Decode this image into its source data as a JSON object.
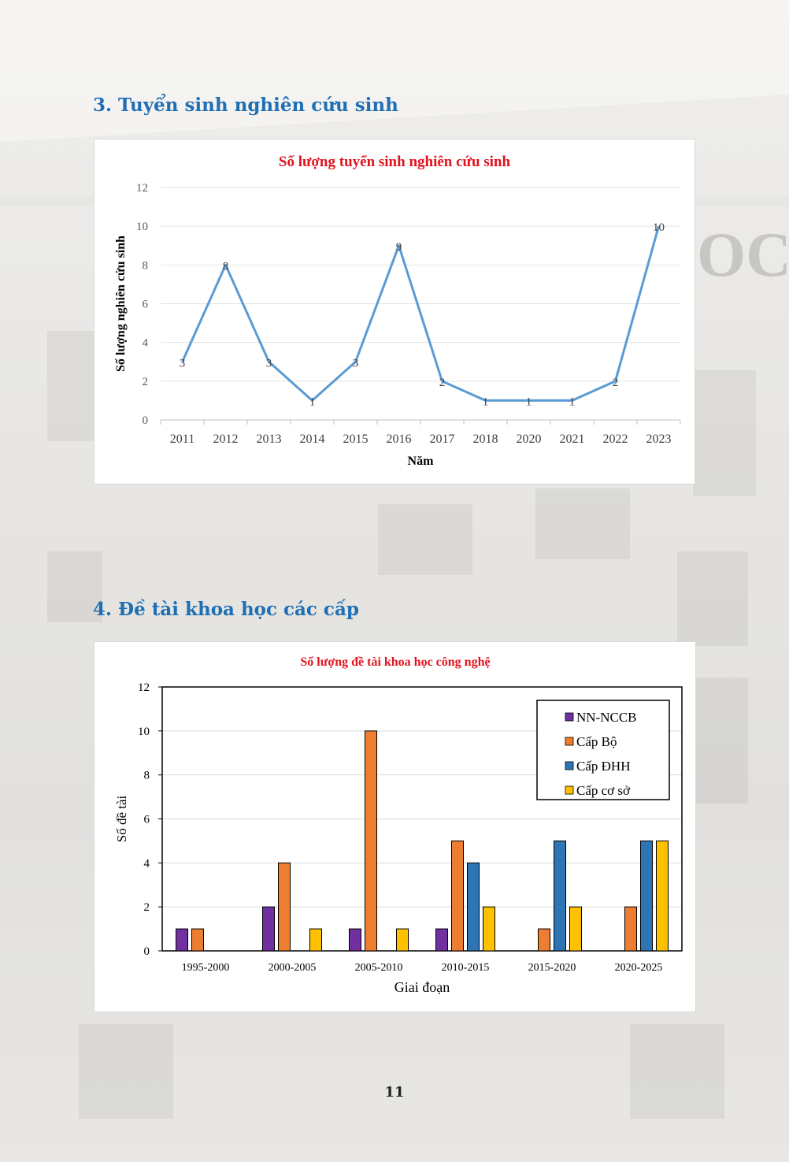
{
  "page": {
    "section3_heading": "3. Tuyển sinh nghiên cứu sinh",
    "section4_heading": "4. Đề tài khoa học các cấp",
    "page_number": "11"
  },
  "colors": {
    "heading": "#1f6fb5",
    "chart_title": "#e0141e",
    "line": "#5b9bd5",
    "nn_nccb": "#7030a0",
    "cap_bo": "#ed7d31",
    "cap_dhh": "#2e75b6",
    "cap_co_so": "#ffc000"
  },
  "chart_data": [
    {
      "type": "line",
      "title": "Số lượng tuyển sinh nghiên cứu sinh",
      "xlabel": "Năm",
      "ylabel": "Số lượng nghiên cứu sinh",
      "categories": [
        "2011",
        "2012",
        "2013",
        "2014",
        "2015",
        "2016",
        "2017",
        "2018",
        "2020",
        "2021",
        "2022",
        "2023"
      ],
      "values": [
        3,
        8,
        3,
        1,
        3,
        9,
        2,
        1,
        1,
        1,
        2,
        10
      ],
      "ylim": [
        0,
        12
      ],
      "yticks": [
        0,
        2,
        4,
        6,
        8,
        10,
        12
      ],
      "grid": true,
      "data_labels": true,
      "legend": "none"
    },
    {
      "type": "bar",
      "title": "Số lượng đề tài khoa học công nghệ",
      "xlabel": "Giai đoạn",
      "ylabel": "Số đề tài",
      "categories": [
        "1995-2000",
        "2000-2005",
        "2005-2010",
        "2010-2015",
        "2015-2020",
        "2020-2025"
      ],
      "series": [
        {
          "name": "NN-NCCB",
          "values": [
            1,
            2,
            1,
            1,
            0,
            0
          ]
        },
        {
          "name": "Cấp Bộ",
          "values": [
            1,
            4,
            10,
            5,
            1,
            2
          ]
        },
        {
          "name": "Cấp ĐHH",
          "values": [
            0,
            0,
            0,
            4,
            5,
            5
          ]
        },
        {
          "name": "Cấp cơ sở",
          "values": [
            0,
            1,
            1,
            2,
            2,
            5
          ]
        }
      ],
      "ylim": [
        0,
        12
      ],
      "yticks": [
        0,
        2,
        4,
        6,
        8,
        10,
        12
      ],
      "grid": true,
      "legend": "top-right"
    }
  ]
}
